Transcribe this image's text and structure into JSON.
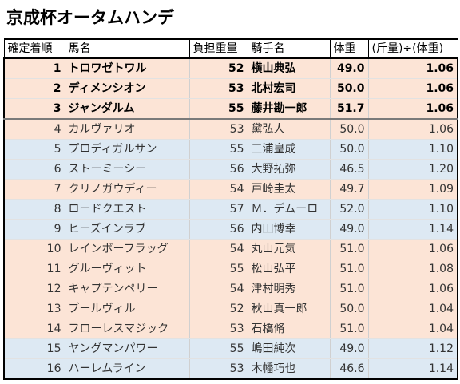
{
  "title": "京成杯オータムハンデ",
  "headers": {
    "rank": "確定着順",
    "horse": "馬名",
    "weight": "負担重量",
    "jockey": "騎手名",
    "body": "体重",
    "ratio": "(斤量)÷(体重)"
  },
  "rows": [
    {
      "rank": "1",
      "horse": "トロワゼトワル",
      "weight": "52",
      "jockey": "横山典弘",
      "body": "49.0",
      "ratio": "1.06",
      "style": "top"
    },
    {
      "rank": "2",
      "horse": "ディメンシオン",
      "weight": "53",
      "jockey": "北村宏司",
      "body": "50.0",
      "ratio": "1.06",
      "style": "top"
    },
    {
      "rank": "3",
      "horse": "ジャンダルム",
      "weight": "55",
      "jockey": "藤井勘一郎",
      "body": "51.7",
      "ratio": "1.06",
      "style": "top"
    },
    {
      "rank": "4",
      "horse": "カルヴァリオ",
      "weight": "53",
      "jockey": "黛弘人",
      "body": "50.0",
      "ratio": "1.06",
      "style": "salmon"
    },
    {
      "rank": "5",
      "horse": "プロディガルサン",
      "weight": "55",
      "jockey": "三浦皇成",
      "body": "50.0",
      "ratio": "1.10",
      "style": "blue"
    },
    {
      "rank": "6",
      "horse": "ストーミーシー",
      "weight": "56",
      "jockey": "大野拓弥",
      "body": "46.5",
      "ratio": "1.20",
      "style": "blue"
    },
    {
      "rank": "7",
      "horse": "クリノガウディー",
      "weight": "54",
      "jockey": "戸崎圭太",
      "body": "49.7",
      "ratio": "1.09",
      "style": "salmon"
    },
    {
      "rank": "8",
      "horse": "ロードクエスト",
      "weight": "57",
      "jockey": "Ｍ．デムーロ",
      "body": "52.0",
      "ratio": "1.10",
      "style": "blue"
    },
    {
      "rank": "9",
      "horse": "ヒーズインラブ",
      "weight": "56",
      "jockey": "内田博幸",
      "body": "49.0",
      "ratio": "1.14",
      "style": "blue"
    },
    {
      "rank": "10",
      "horse": "レインボーフラッグ",
      "weight": "54",
      "jockey": "丸山元気",
      "body": "51.0",
      "ratio": "1.06",
      "style": "salmon"
    },
    {
      "rank": "11",
      "horse": "グルーヴィット",
      "weight": "55",
      "jockey": "松山弘平",
      "body": "51.0",
      "ratio": "1.08",
      "style": "salmon"
    },
    {
      "rank": "12",
      "horse": "キャプテンペリー",
      "weight": "54",
      "jockey": "津村明秀",
      "body": "51.0",
      "ratio": "1.06",
      "style": "salmon"
    },
    {
      "rank": "13",
      "horse": "ブールヴィル",
      "weight": "52",
      "jockey": "秋山真一郎",
      "body": "50.0",
      "ratio": "1.04",
      "style": "salmon"
    },
    {
      "rank": "14",
      "horse": "フローレスマジック",
      "weight": "53",
      "jockey": "石橋脩",
      "body": "51.0",
      "ratio": "1.04",
      "style": "salmon"
    },
    {
      "rank": "15",
      "horse": "ヤングマンパワー",
      "weight": "55",
      "jockey": "嶋田純次",
      "body": "49.0",
      "ratio": "1.12",
      "style": "blue"
    },
    {
      "rank": "16",
      "horse": "ハーレムライン",
      "weight": "53",
      "jockey": "木幡巧也",
      "body": "46.6",
      "ratio": "1.14",
      "style": "blue"
    }
  ],
  "colors": {
    "salmon": "#fce4d6",
    "blue": "#dde9f3"
  }
}
